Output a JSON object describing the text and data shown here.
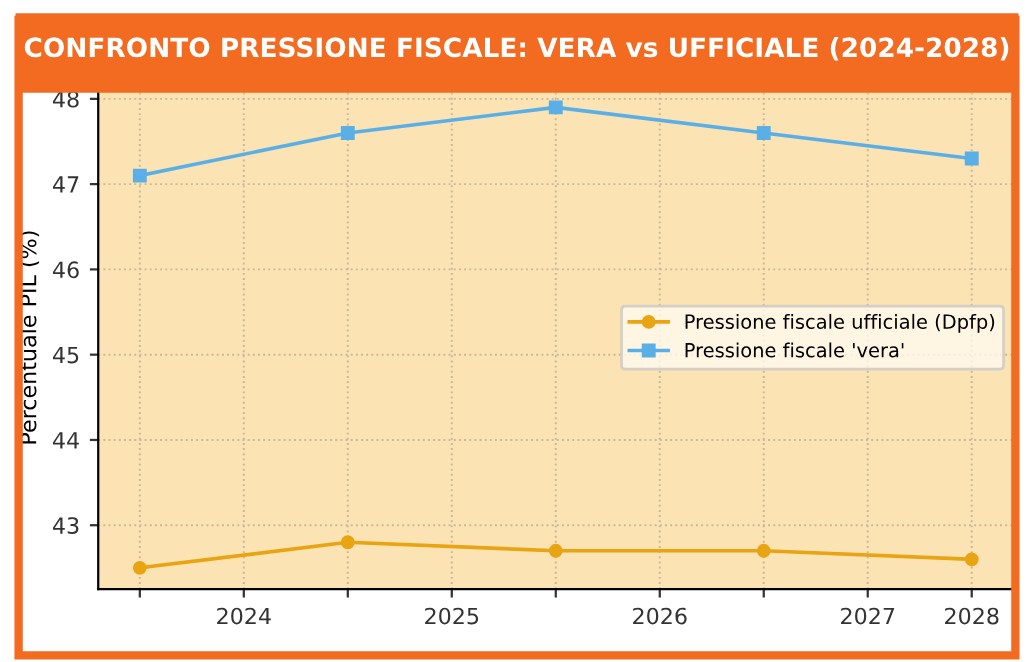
{
  "chart_data": {
    "type": "line",
    "title": "CONFRONTO PRESSIONE FISCALE: VERA vs UFFICIALE (2024-2028)",
    "ylabel": "Percentuale PIL (%)",
    "x": [
      2023.5,
      2024.5,
      2025.5,
      2026.5,
      2027.5
    ],
    "series": [
      {
        "name": "Pressione fiscale ufficiale (Dpfp)",
        "color": "#e9a413",
        "marker": "circle",
        "values": [
          42.5,
          42.8,
          42.7,
          42.7,
          42.6
        ]
      },
      {
        "name": "Pressione fiscale 'vera'",
        "color": "#5aafe6",
        "marker": "square",
        "values": [
          47.1,
          47.6,
          47.9,
          47.6,
          47.3
        ]
      }
    ],
    "xlim": [
      2023.3,
      2027.7
    ],
    "xticks": [
      {
        "value": 2023.5,
        "label": null
      },
      {
        "value": 2024,
        "label": "2024"
      },
      {
        "value": 2024.5,
        "label": null
      },
      {
        "value": 2025,
        "label": "2025"
      },
      {
        "value": 2025.5,
        "label": null
      },
      {
        "value": 2026,
        "label": "2026"
      },
      {
        "value": 2026.5,
        "label": null
      },
      {
        "value": 2027,
        "label": "2027"
      },
      {
        "value": 2027.5,
        "label": "2028"
      }
    ],
    "ylim": [
      42.25,
      48.15
    ],
    "yticks": [
      43,
      44,
      45,
      46,
      47,
      48
    ],
    "grid": true,
    "legend": "right",
    "line_style": "solid"
  }
}
